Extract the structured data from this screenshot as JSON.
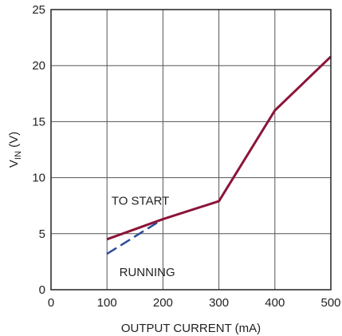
{
  "chart_data": {
    "type": "line",
    "title": "",
    "xlabel": "OUTPUT CURRENT (mA)",
    "ylabel_main": "V",
    "ylabel_sub": "IN",
    "ylabel_unit": " (V)",
    "xlim": [
      0,
      500
    ],
    "ylim": [
      0,
      25
    ],
    "xticks": [
      0,
      100,
      200,
      300,
      400,
      500
    ],
    "yticks": [
      0,
      5,
      10,
      15,
      20,
      25
    ],
    "grid": true,
    "series": [
      {
        "name": "TO START",
        "color": "#8b1538",
        "style": "solid",
        "x": [
          100,
          200,
          300,
          400,
          500
        ],
        "y": [
          4.5,
          6.3,
          7.9,
          16.0,
          20.8
        ]
      },
      {
        "name": "RUNNING",
        "color": "#2e4b9b",
        "style": "dashed",
        "x": [
          100,
          200
        ],
        "y": [
          3.2,
          6.3
        ]
      }
    ],
    "annotations": [
      {
        "text": "TO START",
        "x": 108,
        "y": 7.6
      },
      {
        "text": "RUNNING",
        "x": 122,
        "y": 1.2
      }
    ]
  }
}
